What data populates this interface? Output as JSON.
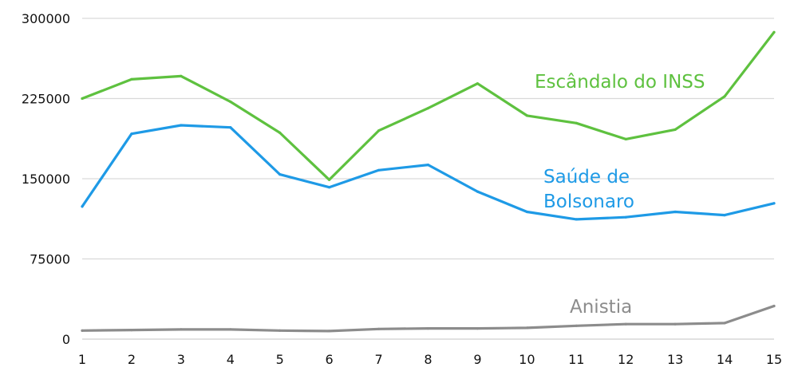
{
  "chart_data": {
    "type": "line",
    "x": [
      1,
      2,
      3,
      4,
      5,
      6,
      7,
      8,
      9,
      10,
      11,
      12,
      13,
      14,
      15
    ],
    "xlim": [
      1,
      15
    ],
    "ylim": [
      0,
      300000
    ],
    "y_ticks": [
      "0",
      "75000",
      "150000",
      "225000",
      "300000"
    ],
    "x_ticks": [
      "1",
      "2",
      "3",
      "4",
      "5",
      "6",
      "7",
      "8",
      "9",
      "10",
      "11",
      "12",
      "13",
      "14",
      "15"
    ],
    "grid": true,
    "series": [
      {
        "name": "Escândalo do INSS",
        "label_lines": [
          "Escândalo do INSS"
        ],
        "color": "#5ec13f",
        "values": [
          225000,
          243000,
          246000,
          222000,
          193000,
          149000,
          195000,
          216000,
          239000,
          209000,
          202000,
          187000,
          196000,
          227000,
          287000
        ]
      },
      {
        "name": "Saúde de Bolsonaro",
        "label_lines": [
          "Saúde de",
          "Bolsonaro"
        ],
        "color": "#1e9ae6",
        "values": [
          124000,
          192000,
          200000,
          198000,
          154000,
          142000,
          158000,
          163000,
          138000,
          119000,
          112000,
          114000,
          119000,
          116000,
          127000
        ]
      },
      {
        "name": "Anistia",
        "label_lines": [
          "Anistia"
        ],
        "color": "#8c8c8c",
        "values": [
          8000,
          8500,
          9000,
          9000,
          8000,
          7500,
          9500,
          10000,
          10000,
          10500,
          12500,
          14000,
          14000,
          15000,
          31000
        ]
      }
    ]
  }
}
